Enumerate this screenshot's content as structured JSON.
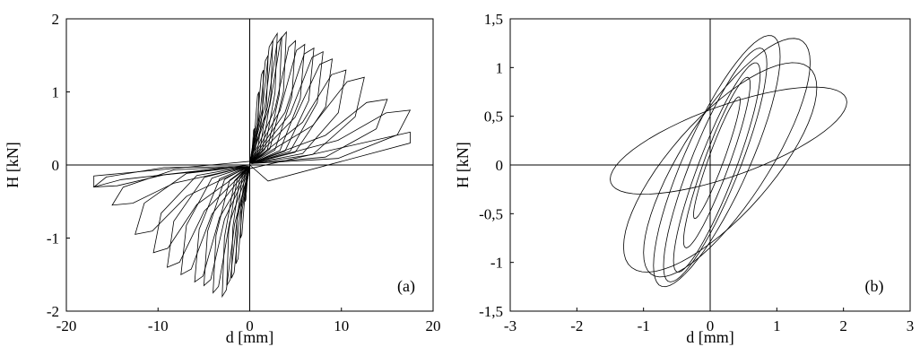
{
  "chart_data": [
    {
      "type": "line",
      "panel_label": "(a)",
      "xlabel": "d [mm]",
      "ylabel": "H [kN]",
      "xlim": [
        -20,
        20
      ],
      "ylim": [
        -2,
        2
      ],
      "xticks": [
        -20,
        -10,
        0,
        10,
        20
      ],
      "yticks": [
        -2,
        -1,
        0,
        1,
        2
      ],
      "xtick_labels": [
        "-20",
        "-10",
        "0",
        "10",
        "20"
      ],
      "ytick_labels": [
        "-2",
        "-1",
        "0",
        "1",
        "2"
      ],
      "grid": false,
      "legend": "none",
      "line_color": "#000000",
      "loop_peaks": [
        {
          "d": 0.5,
          "h": 0.5
        },
        {
          "d": 1,
          "h": 1.0
        },
        {
          "d": 1.5,
          "h": 1.3
        },
        {
          "d": 2,
          "h": 1.5
        },
        {
          "d": 2.5,
          "h": 1.7
        },
        {
          "d": 3,
          "h": 1.8
        },
        {
          "d": 3.5,
          "h": 1.75
        },
        {
          "d": 4,
          "h": 1.82
        },
        {
          "d": 5,
          "h": 1.7
        },
        {
          "d": 6,
          "h": 1.65
        },
        {
          "d": 7,
          "h": 1.6
        },
        {
          "d": 8,
          "h": 1.55
        },
        {
          "d": 9,
          "h": 1.45
        },
        {
          "d": 10.5,
          "h": 1.3
        },
        {
          "d": 12.5,
          "h": 1.2
        },
        {
          "d": 15,
          "h": 0.9
        },
        {
          "d": 17.5,
          "h": 0.75
        }
      ],
      "loop_troughs": [
        {
          "d": -0.5,
          "h": -0.5
        },
        {
          "d": -1,
          "h": -1.0
        },
        {
          "d": -1.5,
          "h": -1.35
        },
        {
          "d": -2,
          "h": -1.55
        },
        {
          "d": -2.5,
          "h": -1.65
        },
        {
          "d": -3,
          "h": -1.8
        },
        {
          "d": -4,
          "h": -1.75
        },
        {
          "d": -5,
          "h": -1.65
        },
        {
          "d": -6,
          "h": -1.6
        },
        {
          "d": -7.5,
          "h": -1.5
        },
        {
          "d": -9,
          "h": -1.4
        },
        {
          "d": -10.5,
          "h": -1.2
        },
        {
          "d": -12.5,
          "h": -0.95
        },
        {
          "d": -15,
          "h": -0.55
        },
        {
          "d": -17,
          "h": -0.3
        }
      ]
    },
    {
      "type": "line",
      "panel_label": "(b)",
      "xlabel": "d [mm]",
      "ylabel": "H [kN]",
      "xlim": [
        -3,
        3
      ],
      "ylim": [
        -1.5,
        1.5
      ],
      "xticks": [
        -3,
        -2,
        -1,
        0,
        1,
        2,
        3
      ],
      "yticks": [
        -1.5,
        -1,
        -0.5,
        0,
        0.5,
        1,
        1.5
      ],
      "xtick_labels": [
        "-3",
        "-2",
        "-1",
        "0",
        "1",
        "2",
        "3"
      ],
      "ytick_labels": [
        "-1,5",
        "-1",
        "-0,5",
        "0",
        "0,5",
        "1",
        "1,5"
      ],
      "grid": false,
      "legend": "none",
      "line_color": "#000000",
      "loops": [
        {
          "dmin": -0.25,
          "hmin": -0.55,
          "dmax": 0.45,
          "hmax": 0.7
        },
        {
          "dmin": -0.4,
          "hmin": -0.85,
          "dmax": 0.6,
          "hmax": 0.9
        },
        {
          "dmin": -0.55,
          "hmin": -1.1,
          "dmax": 0.75,
          "hmax": 1.05
        },
        {
          "dmin": -0.7,
          "hmin": -1.2,
          "dmax": 0.85,
          "hmax": 1.2
        },
        {
          "dmin": -0.85,
          "hmin": -1.25,
          "dmax": 1.05,
          "hmax": 1.33
        },
        {
          "dmin": -1.0,
          "hmin": -1.15,
          "dmax": 1.5,
          "hmax": 1.3
        },
        {
          "dmin": -1.3,
          "hmin": -1.1,
          "dmax": 1.6,
          "hmax": 1.05
        },
        {
          "dmin": -1.5,
          "hmin": -0.3,
          "dmax": 2.05,
          "hmax": 0.8
        }
      ]
    }
  ]
}
